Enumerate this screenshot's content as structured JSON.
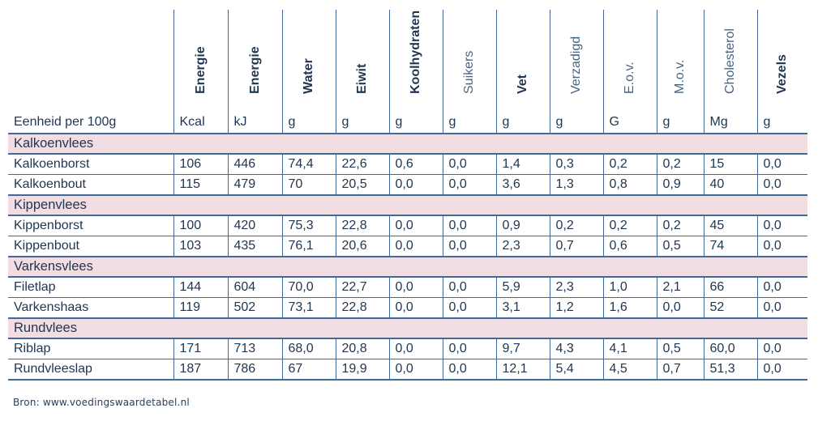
{
  "columns": [
    {
      "name": "Energie",
      "unit": "Kcal",
      "bold": true
    },
    {
      "name": "Energie",
      "unit": "kJ",
      "bold": true
    },
    {
      "name": "Water",
      "unit": "g",
      "bold": true
    },
    {
      "name": "Eiwit",
      "unit": "g",
      "bold": true
    },
    {
      "name": "Koolhydraten",
      "unit": "g",
      "bold": true
    },
    {
      "name": "Suikers",
      "unit": "g",
      "bold": false
    },
    {
      "name": "Vet",
      "unit": "g",
      "bold": true
    },
    {
      "name": "Verzadigd",
      "unit": "g",
      "bold": false
    },
    {
      "name": "E.o.v.",
      "unit": "G",
      "bold": false
    },
    {
      "name": "M.o.v.",
      "unit": "g",
      "bold": false
    },
    {
      "name": "Cholesterol",
      "unit": "Mg",
      "bold": false
    },
    {
      "name": "Vezels",
      "unit": "g",
      "bold": true
    }
  ],
  "unit_label": "Eenheid per 100g",
  "groups": [
    {
      "name": "Kalkoenvlees",
      "rows": [
        {
          "label": "Kalkoenborst",
          "values": [
            "106",
            "446",
            "74,4",
            "22,6",
            "0,6",
            "0,0",
            "1,4",
            "0,3",
            "0,2",
            "0,2",
            "15",
            "0,0"
          ]
        },
        {
          "label": "Kalkoenbout",
          "values": [
            "115",
            "479",
            "70",
            "20,5",
            "0,0",
            "0,0",
            "3,6",
            "1,3",
            "0,8",
            "0,9",
            "40",
            "0,0"
          ]
        }
      ]
    },
    {
      "name": "Kippenvlees",
      "rows": [
        {
          "label": "Kippenborst",
          "values": [
            "100",
            "420",
            "75,3",
            "22,8",
            "0,0",
            "0,0",
            "0,9",
            "0,2",
            "0,2",
            "0,2",
            "45",
            "0,0"
          ]
        },
        {
          "label": "Kippenbout",
          "values": [
            "103",
            "435",
            "76,1",
            "20,6",
            "0,0",
            "0,0",
            "2,3",
            "0,7",
            "0,6",
            "0,5",
            "74",
            "0,0"
          ]
        }
      ]
    },
    {
      "name": "Varkensvlees",
      "rows": [
        {
          "label": "Filetlap",
          "values": [
            "144",
            "604",
            "70,0",
            "22,7",
            "0,0",
            "0,0",
            "5,9",
            "2,3",
            "1,0",
            "2,1",
            "66",
            "0,0"
          ]
        },
        {
          "label": "Varkenshaas",
          "values": [
            "119",
            "502",
            "73,1",
            "22,8",
            "0,0",
            "0,0",
            "3,1",
            "1,2",
            "1,6",
            "0,0",
            "52",
            "0,0"
          ]
        }
      ]
    },
    {
      "name": "Rundvlees",
      "rows": [
        {
          "label": "Riblap",
          "values": [
            "171",
            "713",
            "68,0",
            "20,8",
            "0,0",
            "0,0",
            "9,7",
            "4,3",
            "4,1",
            "0,5",
            "60,0",
            "0,0"
          ]
        },
        {
          "label": "Rundvleeslap",
          "values": [
            "187",
            "786",
            "67",
            "19,9",
            "0,0",
            "0,0",
            "12,1",
            "5,4",
            "4,5",
            "0,7",
            "51,3",
            "0,0"
          ]
        }
      ]
    }
  ],
  "source": "Bron: www.voedingswaardetabel.nl",
  "colors": {
    "border": "#3d6a9a",
    "group_bg": "#f2dde2",
    "text": "#1f3550"
  }
}
